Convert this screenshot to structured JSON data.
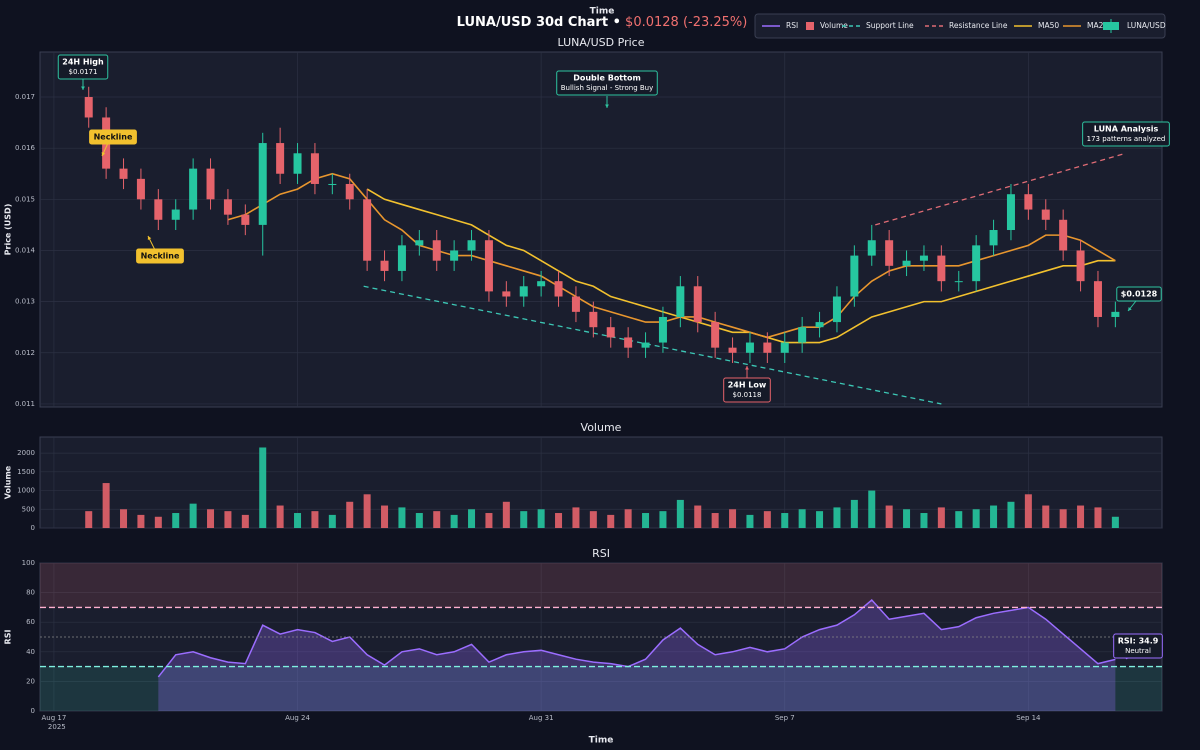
{
  "header": {
    "time_label": "Time",
    "title": "LUNA/USD 30d Chart •",
    "price_change": "$0.0128 (-23.25%)",
    "price_change_color": "#f0706f"
  },
  "chart_data": [
    {
      "type": "candlestick",
      "title": "LUNA/USD Price",
      "y_label": "Price (USD)",
      "x": [
        1,
        1.5,
        2,
        2.5,
        3,
        3.5,
        4,
        4.5,
        5,
        5.5,
        6,
        6.5,
        7,
        7.5,
        8,
        8.5,
        9,
        9.5,
        10,
        10.5,
        11,
        11.5,
        12,
        12.5,
        13,
        13.5,
        14,
        14.5,
        15,
        15.5,
        16,
        16.5,
        17,
        17.5,
        18,
        18.5,
        19,
        19.5,
        20,
        20.5,
        21,
        21.5,
        22,
        22.5,
        23,
        23.5,
        24,
        24.5,
        25,
        25.5,
        26,
        26.5,
        27,
        27.5,
        28,
        28.5,
        29,
        29.5,
        30,
        30.5
      ],
      "ohlc": {
        "name": "LUNA/USD",
        "up_color": "#26c6a0",
        "down_color": "#e5636b",
        "open": [
          0.017,
          0.0166,
          0.0156,
          0.0154,
          0.015,
          0.0146,
          0.0148,
          0.0156,
          0.015,
          0.0147,
          0.0145,
          0.0161,
          0.0155,
          0.0159,
          0.0153,
          0.0153,
          0.015,
          0.0138,
          0.0136,
          0.0141,
          0.0142,
          0.0138,
          0.014,
          0.0142,
          0.0132,
          0.0131,
          0.0133,
          0.0134,
          0.0131,
          0.0128,
          0.0125,
          0.0123,
          0.0121,
          0.0122,
          0.0127,
          0.0133,
          0.0126,
          0.0121,
          0.012,
          0.0122,
          0.012,
          0.0122,
          0.0125,
          0.0126,
          0.0131,
          0.0139,
          0.0142,
          0.0137,
          0.0138,
          0.0139,
          0.0134,
          0.0134,
          0.0141,
          0.0144,
          0.0151,
          0.0148,
          0.0146,
          0.014,
          0.0134,
          0.0127
        ],
        "high": [
          0.0172,
          0.0168,
          0.0158,
          0.0156,
          0.0152,
          0.015,
          0.0158,
          0.0158,
          0.0152,
          0.0149,
          0.0163,
          0.0164,
          0.0161,
          0.0161,
          0.0155,
          0.0155,
          0.0152,
          0.014,
          0.0143,
          0.0144,
          0.0144,
          0.0142,
          0.0144,
          0.0144,
          0.0134,
          0.0135,
          0.0136,
          0.0136,
          0.0133,
          0.013,
          0.0127,
          0.0125,
          0.0124,
          0.0129,
          0.0135,
          0.0135,
          0.0128,
          0.0123,
          0.0124,
          0.0124,
          0.0124,
          0.0127,
          0.0128,
          0.0133,
          0.0141,
          0.0145,
          0.0144,
          0.014,
          0.0141,
          0.0141,
          0.0136,
          0.0143,
          0.0146,
          0.0153,
          0.0153,
          0.015,
          0.0148,
          0.0142,
          0.0136,
          0.013
        ],
        "low": [
          0.0164,
          0.0154,
          0.0152,
          0.0148,
          0.0144,
          0.0144,
          0.0146,
          0.0148,
          0.0145,
          0.0143,
          0.0139,
          0.0153,
          0.0153,
          0.0151,
          0.0151,
          0.0148,
          0.0136,
          0.0134,
          0.0134,
          0.0139,
          0.0136,
          0.0136,
          0.0138,
          0.013,
          0.0129,
          0.0129,
          0.0131,
          0.0129,
          0.0126,
          0.0123,
          0.0121,
          0.0119,
          0.0119,
          0.012,
          0.0125,
          0.0124,
          0.0119,
          0.0118,
          0.0118,
          0.0118,
          0.0118,
          0.012,
          0.0123,
          0.0124,
          0.0129,
          0.0137,
          0.0135,
          0.0135,
          0.0136,
          0.0132,
          0.0132,
          0.0132,
          0.0139,
          0.0142,
          0.0146,
          0.0144,
          0.0138,
          0.0132,
          0.0125,
          0.0125
        ],
        "close": [
          0.0166,
          0.0156,
          0.0154,
          0.015,
          0.0146,
          0.0148,
          0.0156,
          0.015,
          0.0147,
          0.0145,
          0.0161,
          0.0155,
          0.0159,
          0.0153,
          0.0153,
          0.015,
          0.0138,
          0.0136,
          0.0141,
          0.0142,
          0.0138,
          0.014,
          0.0142,
          0.0132,
          0.0131,
          0.0133,
          0.0134,
          0.0131,
          0.0128,
          0.0125,
          0.0123,
          0.0121,
          0.0122,
          0.0127,
          0.0133,
          0.0126,
          0.0121,
          0.012,
          0.0122,
          0.012,
          0.0122,
          0.0125,
          0.0126,
          0.0131,
          0.0139,
          0.0142,
          0.0137,
          0.0138,
          0.0139,
          0.0134,
          0.0134,
          0.0141,
          0.0144,
          0.0151,
          0.0148,
          0.0146,
          0.014,
          0.0134,
          0.0127,
          0.0128
        ]
      },
      "series": [
        {
          "name": "MA50",
          "color": "#f2c12e",
          "values": [
            null,
            null,
            null,
            null,
            null,
            null,
            null,
            null,
            null,
            null,
            null,
            null,
            null,
            null,
            null,
            null,
            0.0152,
            0.015,
            0.0149,
            0.0148,
            0.0147,
            0.0146,
            0.0145,
            0.0143,
            0.0141,
            0.014,
            0.0138,
            0.0136,
            0.0134,
            0.0133,
            0.0131,
            0.013,
            0.0129,
            0.0128,
            0.0127,
            0.0126,
            0.0125,
            0.0124,
            0.0124,
            0.0123,
            0.0122,
            0.0122,
            0.0122,
            0.0123,
            0.0125,
            0.0127,
            0.0128,
            0.0129,
            0.013,
            0.013,
            0.0131,
            0.0132,
            0.0133,
            0.0134,
            0.0135,
            0.0136,
            0.0137,
            0.0137,
            0.0138,
            0.0138
          ]
        },
        {
          "name": "MA20",
          "color": "#e8962e",
          "values": [
            null,
            null,
            null,
            null,
            null,
            null,
            null,
            null,
            0.0146,
            0.0147,
            0.0149,
            0.0151,
            0.0152,
            0.0154,
            0.0155,
            0.0154,
            0.015,
            0.0146,
            0.0144,
            0.0141,
            0.014,
            0.0139,
            0.0139,
            0.0138,
            0.0137,
            0.0136,
            0.0135,
            0.0133,
            0.0131,
            0.0129,
            0.0128,
            0.0127,
            0.0126,
            0.0126,
            0.0127,
            0.0127,
            0.0126,
            0.0125,
            0.0124,
            0.0123,
            0.0124,
            0.0125,
            0.0125,
            0.0127,
            0.0131,
            0.0134,
            0.0136,
            0.0137,
            0.0137,
            0.0137,
            0.0137,
            0.0138,
            0.0139,
            0.014,
            0.0141,
            0.0143,
            0.0143,
            0.0142,
            0.014,
            0.0138
          ]
        }
      ],
      "lines": [
        {
          "name": "Support Line",
          "color": "#3cc7b5",
          "x": [
            8.9,
            25.5
          ],
          "y": [
            0.0133,
            0.011
          ]
        },
        {
          "name": "Resistance Line",
          "color": "#e06c75",
          "x": [
            23.6,
            30.8
          ],
          "y": [
            0.0145,
            0.0159
          ]
        }
      ],
      "annotations": [
        {
          "lines": [
            "24H High",
            "$0.0171"
          ],
          "color": "#2ec4a0"
        },
        {
          "lines": [
            "Neckline"
          ],
          "color": "#f2c12e"
        },
        {
          "lines": [
            "Neckline"
          ],
          "color": "#f2c12e"
        },
        {
          "lines": [
            "Double Bottom",
            "Bullish Signal - Strong Buy"
          ],
          "color": "#2ec4a0"
        },
        {
          "lines": [
            "LUNA Analysis",
            "173 patterns analyzed"
          ],
          "color": "#2ec4a0"
        },
        {
          "lines": [
            "$0.0128"
          ],
          "color": "#2ec4a0"
        },
        {
          "lines": [
            "24H Low",
            "$0.0118"
          ],
          "color": "#e5636b"
        }
      ],
      "xlim": [
        -0.4,
        31.84
      ],
      "ylim": [
        0.01094,
        0.01788
      ],
      "xticks": [
        0,
        7,
        14,
        21,
        28
      ],
      "yticks": [
        0.011,
        0.012,
        0.013,
        0.014,
        0.015,
        0.016,
        0.017
      ],
      "grid": true
    },
    {
      "type": "bar",
      "title": "Volume",
      "y_label": "Volume",
      "x": [
        1,
        1.5,
        2,
        2.5,
        3,
        3.5,
        4,
        4.5,
        5,
        5.5,
        6,
        6.5,
        7,
        7.5,
        8,
        8.5,
        9,
        9.5,
        10,
        10.5,
        11,
        11.5,
        12,
        12.5,
        13,
        13.5,
        14,
        14.5,
        15,
        15.5,
        16,
        16.5,
        17,
        17.5,
        18,
        18.5,
        19,
        19.5,
        20,
        20.5,
        21,
        21.5,
        22,
        22.5,
        23,
        23.5,
        24,
        24.5,
        25,
        25.5,
        26,
        26.5,
        27,
        27.5,
        28,
        28.5,
        29,
        29.5,
        30,
        30.5
      ],
      "series": [
        {
          "name": "Volume",
          "color": "#e5636b",
          "values": [
            450,
            1200,
            500,
            350,
            300,
            400,
            650,
            500,
            450,
            350,
            2150,
            600,
            400,
            450,
            350,
            700,
            900,
            600,
            550,
            400,
            450,
            350,
            500,
            400,
            700,
            450,
            500,
            400,
            550,
            450,
            350,
            500,
            400,
            450,
            750,
            600,
            400,
            500,
            350,
            450,
            400,
            500,
            450,
            550,
            750,
            1000,
            600,
            500,
            400,
            550,
            450,
            500,
            600,
            700,
            900,
            600,
            500,
            600,
            550,
            300
          ]
        }
      ],
      "xlim": [
        -0.4,
        31.84
      ],
      "ylim": [
        0,
        2430
      ],
      "xticks": [
        0,
        7,
        14,
        21,
        28
      ],
      "yticks": [
        0,
        500,
        1000,
        1500,
        2000
      ],
      "grid": true
    },
    {
      "type": "line",
      "title": "RSI",
      "y_label": "RSI",
      "x_label": "Time",
      "x_year_label": "2025",
      "x": [
        1,
        1.5,
        2,
        2.5,
        3,
        3.5,
        4,
        4.5,
        5,
        5.5,
        6,
        6.5,
        7,
        7.5,
        8,
        8.5,
        9,
        9.5,
        10,
        10.5,
        11,
        11.5,
        12,
        12.5,
        13,
        13.5,
        14,
        14.5,
        15,
        15.5,
        16,
        16.5,
        17,
        17.5,
        18,
        18.5,
        19,
        19.5,
        20,
        20.5,
        21,
        21.5,
        22,
        22.5,
        23,
        23.5,
        24,
        24.5,
        25,
        25.5,
        26,
        26.5,
        27,
        27.5,
        28,
        28.5,
        29,
        29.5,
        30,
        30.5
      ],
      "series": [
        {
          "name": "RSI",
          "color": "#9b6dff",
          "values": [
            null,
            null,
            null,
            null,
            23,
            38,
            40,
            36,
            33,
            32,
            58,
            52,
            55,
            53,
            47,
            50,
            38,
            31,
            40,
            42,
            38,
            40,
            45,
            33,
            38,
            40,
            41,
            38,
            35,
            33,
            32,
            30,
            35,
            48,
            56,
            45,
            38,
            40,
            43,
            40,
            42,
            50,
            55,
            58,
            65,
            75,
            62,
            64,
            66,
            55,
            57,
            63,
            66,
            68,
            70,
            62,
            52,
            42,
            32,
            34.9
          ]
        }
      ],
      "zones": [
        {
          "from": 70,
          "to": 100,
          "color": "#e5636b"
        },
        {
          "from": 0,
          "to": 30,
          "color": "#2ec4a0"
        }
      ],
      "reference_lines": [
        {
          "value": 70,
          "color": "#ffb0d0",
          "style": "dashed"
        },
        {
          "value": 30,
          "color": "#7ff0e0",
          "style": "dashed"
        },
        {
          "value": 50,
          "color": "#888888",
          "style": "dotted"
        }
      ],
      "annotations": [
        {
          "lines": [
            "RSI: 34.9",
            "Neutral"
          ],
          "color": "#9b6dff"
        }
      ],
      "xlim": [
        -0.4,
        31.84
      ],
      "ylim": [
        0,
        100
      ],
      "xticks": [
        {
          "value": 0,
          "label": "Aug 17"
        },
        {
          "value": 7,
          "label": "Aug 24"
        },
        {
          "value": 14,
          "label": "Aug 31"
        },
        {
          "value": 21,
          "label": "Sep 7"
        },
        {
          "value": 28,
          "label": "Sep 14"
        }
      ],
      "yticks": [
        0,
        20,
        40,
        60,
        80,
        100
      ],
      "grid": true
    }
  ]
}
